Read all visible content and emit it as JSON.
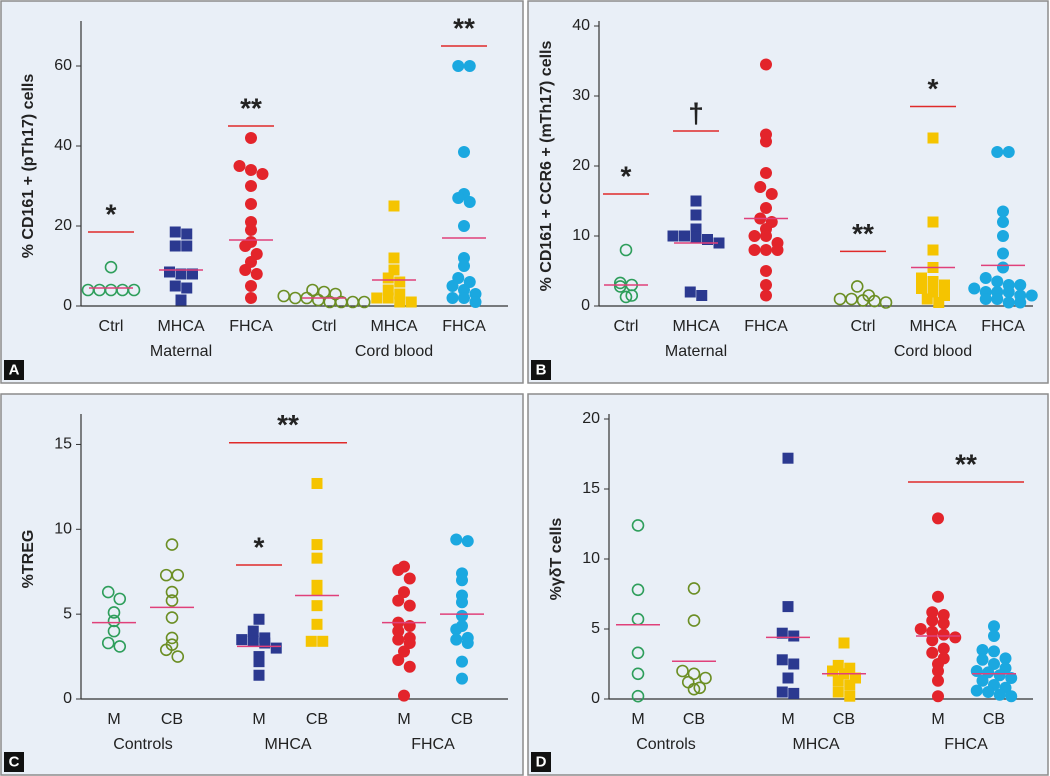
{
  "chart_data": [
    {
      "type": "strip",
      "panel_label": "A",
      "ylabel": "% CD161 + (pTh17) cells",
      "ylim": [
        0,
        70
      ],
      "yticks": [
        0,
        20,
        40,
        60
      ],
      "mean_color": "#e0407a",
      "sig_color": "#e02a2a",
      "groups": [
        {
          "name": "Maternal",
          "categories": [
            {
              "name": "Ctrl",
              "marker": "circle-open",
              "color": "#2e9e5b",
              "values": [
                9.7,
                4,
                4,
                4,
                4,
                4
              ],
              "mean": 4.5,
              "sig": {
                "label": "*",
                "value": 18.5
              }
            },
            {
              "name": "MHCA",
              "marker": "square",
              "color": "#2b3990",
              "values": [
                18.5,
                18,
                15,
                15,
                8.5,
                8,
                8,
                5,
                4.5,
                1.5
              ],
              "mean": 9
            },
            {
              "name": "FHCA",
              "marker": "circle",
              "color": "#e3242b",
              "values": [
                42,
                35,
                34,
                33,
                30,
                25.5,
                21,
                19,
                16,
                15,
                13,
                11,
                9,
                8,
                5,
                2
              ],
              "mean": 16.5,
              "sig": {
                "label": "**",
                "value": 45
              }
            }
          ]
        },
        {
          "name": "Cord blood",
          "categories": [
            {
              "name": "Ctrl",
              "marker": "circle-open",
              "color": "#6b8e23",
              "values": [
                4,
                3.5,
                3,
                2.5,
                2,
                2,
                1.5,
                1,
                1,
                1,
                1
              ],
              "mean": 2
            },
            {
              "name": "MHCA",
              "marker": "square",
              "color": "#f5c400",
              "values": [
                25,
                12,
                9,
                7,
                6,
                4,
                3,
                2,
                2,
                1,
                1
              ],
              "mean": 6.5
            },
            {
              "name": "FHCA",
              "marker": "circle",
              "color": "#1ba8e0",
              "values": [
                60,
                60,
                38.5,
                28,
                27,
                26,
                20,
                12,
                10,
                7,
                6,
                5,
                4,
                3,
                2,
                2,
                1
              ],
              "mean": 17,
              "sig": {
                "label": "**",
                "value": 65
              }
            }
          ]
        }
      ]
    },
    {
      "type": "strip",
      "panel_label": "B",
      "ylabel": "% CD161 + CCR6 + (mTh17) cells",
      "ylim": [
        0,
        40
      ],
      "yticks": [
        0,
        10,
        20,
        30,
        40
      ],
      "mean_color": "#e0407a",
      "sig_color": "#e02a2a",
      "groups": [
        {
          "name": "Maternal",
          "categories": [
            {
              "name": "Ctrl",
              "marker": "circle-open",
              "color": "#2e9e5b",
              "values": [
                8,
                3.3,
                3,
                2.8,
                1.5,
                1.3
              ],
              "mean": 3,
              "sig": {
                "label": "*",
                "value": 16
              }
            },
            {
              "name": "MHCA",
              "marker": "square",
              "color": "#2b3990",
              "values": [
                15,
                13,
                11,
                10,
                10,
                9.8,
                9.5,
                9,
                2,
                1.5
              ],
              "mean": 9,
              "sig": {
                "label": "†",
                "value": 25
              }
            },
            {
              "name": "FHCA",
              "marker": "circle",
              "color": "#e3242b",
              "values": [
                34.5,
                24.5,
                23.5,
                19,
                17,
                16,
                14,
                12.5,
                12,
                11,
                10,
                10,
                9,
                8,
                8,
                8,
                5,
                3,
                1.5
              ],
              "mean": 12.5
            }
          ]
        },
        {
          "name": "Cord blood",
          "categories": [
            {
              "name": "Ctrl",
              "marker": "circle-open",
              "color": "#6b8e23",
              "values": [
                2.8,
                1.5,
                1,
                1,
                0.8,
                0.7,
                0.5
              ],
              "sig": {
                "label": "**",
                "value": 7.8
              }
            },
            {
              "name": "MHCA",
              "marker": "square",
              "color": "#f5c400",
              "values": [
                24,
                12,
                8,
                5.5,
                4,
                3.5,
                3,
                2.5,
                2,
                1.5,
                1,
                0.5
              ],
              "mean": 5.5,
              "sig": {
                "label": "*",
                "value": 28.5
              }
            },
            {
              "name": "FHCA",
              "marker": "circle",
              "color": "#1ba8e0",
              "values": [
                22,
                22,
                13.5,
                12,
                10,
                7.5,
                5.5,
                4,
                3.5,
                3,
                3,
                2.5,
                2,
                2,
                2,
                1.5,
                1.5,
                1,
                1,
                0.5,
                0.5
              ],
              "mean": 5.8
            }
          ]
        }
      ]
    },
    {
      "type": "strip",
      "panel_label": "C",
      "ylabel": "%TREG",
      "ylim": [
        0,
        16.5
      ],
      "yticks": [
        0,
        5,
        10,
        15
      ],
      "mean_color": "#e0407a",
      "sig_color": "#e02a2a",
      "groups": [
        {
          "name": "Controls",
          "categories": [
            {
              "name": "M",
              "marker": "circle-open",
              "color": "#2e9e5b",
              "values": [
                6.3,
                5.9,
                5.1,
                4.6,
                4.0,
                3.3,
                3.1
              ],
              "mean": 4.5
            },
            {
              "name": "CB",
              "marker": "circle-open",
              "color": "#6b8e23",
              "values": [
                9.1,
                7.3,
                7.3,
                6.3,
                5.8,
                4.8,
                3.6,
                3.2,
                2.9,
                2.5
              ],
              "mean": 5.4
            }
          ]
        },
        {
          "name": "MHCA",
          "sig": {
            "label": "**",
            "value": 15.1
          },
          "categories": [
            {
              "name": "M",
              "marker": "square",
              "color": "#2b3990",
              "values": [
                4.7,
                4.0,
                3.6,
                3.5,
                3.4,
                3.3,
                3.0,
                2.5,
                2.2,
                1.4
              ],
              "mean": 3.1,
              "sig": {
                "label": "*",
                "value": 7.9
              }
            },
            {
              "name": "CB",
              "marker": "square",
              "color": "#f5c400",
              "values": [
                12.7,
                9.1,
                8.3,
                6.7,
                6.4,
                5.5,
                4.4,
                3.4,
                3.4
              ],
              "mean": 6.1
            }
          ]
        },
        {
          "name": "FHCA",
          "categories": [
            {
              "name": "M",
              "marker": "circle",
              "color": "#e3242b",
              "values": [
                7.8,
                7.6,
                7.1,
                6.3,
                5.8,
                5.5,
                4.5,
                4.3,
                4.0,
                3.6,
                3.5,
                3.3,
                2.8,
                2.3,
                1.9,
                0.2
              ],
              "mean": 4.5
            },
            {
              "name": "CB",
              "marker": "circle",
              "color": "#1ba8e0",
              "values": [
                9.4,
                9.3,
                7.4,
                7.0,
                6.1,
                5.7,
                4.9,
                4.3,
                4.1,
                3.6,
                3.5,
                3.3,
                2.2,
                1.2
              ],
              "mean": 5.0
            }
          ]
        }
      ]
    },
    {
      "type": "strip",
      "panel_label": "D",
      "ylabel": "%γδT cells",
      "ylim": [
        0,
        20
      ],
      "yticks": [
        0,
        5,
        10,
        15,
        20
      ],
      "mean_color": "#e0407a",
      "sig_color": "#e02a2a",
      "groups": [
        {
          "name": "Controls",
          "categories": [
            {
              "name": "M",
              "marker": "circle-open",
              "color": "#2e9e5b",
              "values": [
                12.4,
                7.8,
                5.7,
                3.3,
                1.8,
                0.2
              ],
              "mean": 5.3
            },
            {
              "name": "CB",
              "marker": "circle-open",
              "color": "#6b8e23",
              "values": [
                7.9,
                5.6,
                2.0,
                1.8,
                1.5,
                1.2,
                0.8,
                0.7
              ],
              "mean": 2.7
            }
          ]
        },
        {
          "name": "MHCA",
          "categories": [
            {
              "name": "M",
              "marker": "square",
              "color": "#2b3990",
              "values": [
                17.2,
                6.6,
                4.7,
                4.5,
                2.8,
                2.5,
                1.5,
                0.5,
                0.4
              ],
              "mean": 4.4
            },
            {
              "name": "CB",
              "marker": "square",
              "color": "#f5c400",
              "values": [
                4.0,
                2.4,
                2.2,
                2.0,
                1.8,
                1.5,
                1.3,
                1.0,
                0.5,
                0.2
              ],
              "mean": 1.8
            }
          ]
        },
        {
          "name": "FHCA",
          "sig": {
            "label": "**",
            "value": 15.5
          },
          "categories": [
            {
              "name": "M",
              "marker": "circle",
              "color": "#e3242b",
              "values": [
                12.9,
                7.3,
                6.2,
                6.0,
                5.6,
                5.4,
                5.0,
                4.8,
                4.6,
                4.4,
                4.2,
                3.6,
                3.3,
                2.9,
                2.5,
                2.0,
                1.3,
                0.2
              ],
              "mean": 4.5
            },
            {
              "name": "CB",
              "marker": "circle",
              "color": "#1ba8e0",
              "values": [
                5.2,
                4.5,
                3.5,
                3.4,
                2.9,
                2.8,
                2.5,
                2.2,
                2.0,
                1.9,
                1.7,
                1.5,
                1.3,
                1.0,
                0.8,
                0.6,
                0.5,
                0.3,
                0.2
              ],
              "mean": 1.8
            }
          ]
        }
      ]
    }
  ]
}
